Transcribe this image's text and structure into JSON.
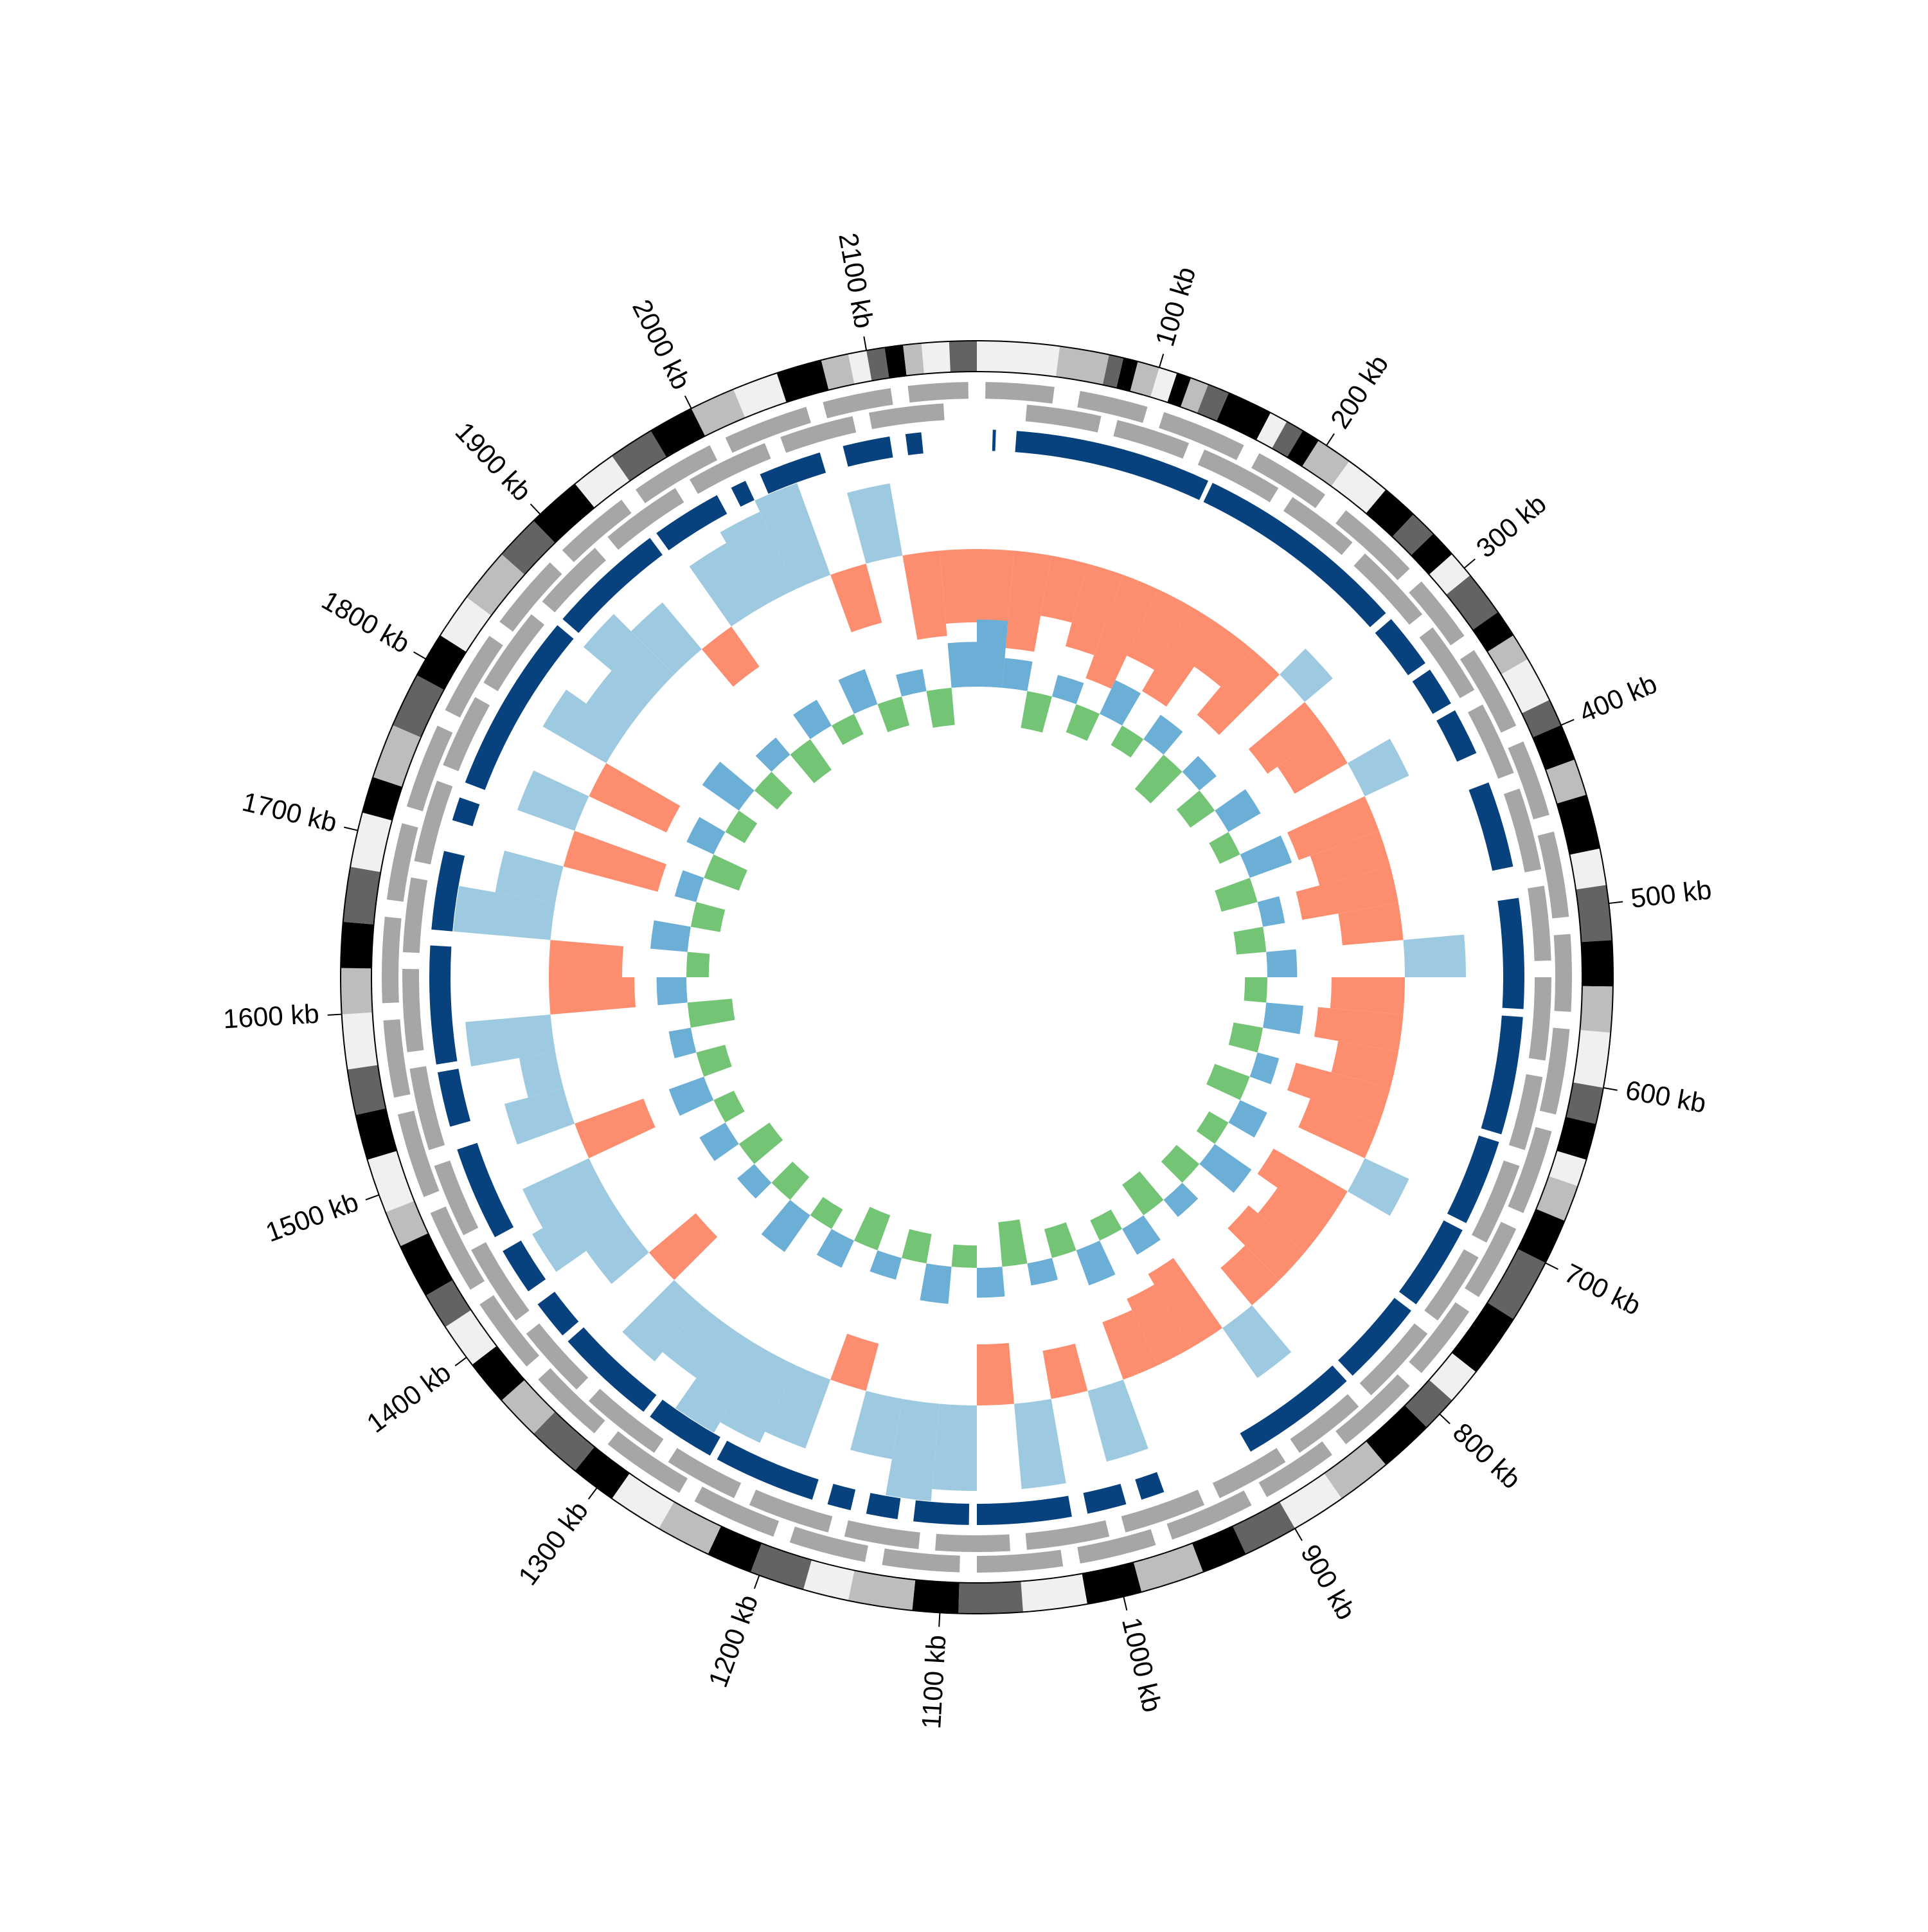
{
  "chart_data": {
    "type": "circular",
    "xlim": [
      0,
      2160
    ],
    "xticks": [
      {
        "value": 100,
        "label": "100 kb"
      },
      {
        "value": 200,
        "label": "200 kb"
      },
      {
        "value": 300,
        "label": "300 kb"
      },
      {
        "value": 400,
        "label": "400 kb"
      },
      {
        "value": 500,
        "label": "500 kb"
      },
      {
        "value": 600,
        "label": "600 kb"
      },
      {
        "value": 700,
        "label": "700 kb"
      },
      {
        "value": 800,
        "label": "800 kb"
      },
      {
        "value": 900,
        "label": "900 kb"
      },
      {
        "value": 1000,
        "label": "1000 kb"
      },
      {
        "value": 1100,
        "label": "1100 kb"
      },
      {
        "value": 1200,
        "label": "1200 kb"
      },
      {
        "value": 1300,
        "label": "1300 kb"
      },
      {
        "value": 1400,
        "label": "1400 kb"
      },
      {
        "value": 1500,
        "label": "1500 kb"
      },
      {
        "value": 1600,
        "label": "1600 kb"
      },
      {
        "value": 1700,
        "label": "1700 kb"
      },
      {
        "value": 1800,
        "label": "1800 kb"
      },
      {
        "value": 1900,
        "label": "1900 kb"
      },
      {
        "value": 2000,
        "label": "2000 kb"
      },
      {
        "value": 2100,
        "label": "2100 kb"
      }
    ],
    "tracks": [
      {
        "type": "bands",
        "palette": [
          "#f0f0f0",
          "#bdbdbd",
          "#636363",
          "#000000"
        ],
        "bins": [
          0,
          45,
          72,
          80,
          88,
          100,
          110,
          118,
          128,
          140,
          165,
          175,
          185,
          195,
          215,
          240,
          260,
          275,
          290,
          305,
          330,
          345,
          360,
          385,
          400,
          420,
          440,
          470,
          490,
          520,
          545,
          570,
          600,
          620,
          640,
          655,
          675,
          700,
          735,
          770,
          790,
          810,
          840,
          870,
          900,
          930,
          955,
          990,
          1020,
          1055,
          1090,
          1115,
          1150,
          1175,
          1205,
          1230,
          1260,
          1290,
          1315,
          1345,
          1370,
          1395,
          1420,
          1440,
          1470,
          1490,
          1520,
          1545,
          1570,
          1600,
          1625,
          1650,
          1680,
          1710,
          1730,
          1760,
          1790,
          1815,
          1840,
          1870,
          1895,
          1925,
          1950,
          1975,
          2000,
          2025,
          2050,
          2075,
          2090,
          2100,
          2110,
          2120,
          2130,
          2145,
          2160
        ],
        "levels": [
          0,
          1,
          2,
          3,
          1,
          0,
          3,
          1,
          2,
          3,
          0,
          2,
          3,
          1,
          0,
          3,
          2,
          3,
          0,
          2,
          3,
          1,
          0,
          2,
          3,
          1,
          3,
          0,
          2,
          3,
          1,
          0,
          2,
          3,
          0,
          1,
          3,
          2,
          3,
          0,
          2,
          3,
          1,
          0,
          2,
          3,
          1,
          3,
          0,
          2,
          3,
          1,
          0,
          2,
          3,
          1,
          0,
          3,
          2,
          1,
          3,
          0,
          2,
          3,
          1,
          0,
          3,
          2,
          0,
          1,
          3,
          2,
          0,
          3,
          1,
          2,
          3,
          0,
          1,
          2,
          3,
          0,
          2,
          3,
          1,
          0,
          3,
          1,
          0,
          2,
          3,
          1,
          0,
          2
        ]
      },
      {
        "type": "intervals",
        "color": "#a6a6a6",
        "starts": [
          5,
          60,
          110,
          170,
          230,
          290,
          340,
          400,
          455,
          515,
          570,
          630,
          690,
          745,
          800,
          860,
          915,
          975,
          1030,
          1090,
          1145,
          1200,
          1260,
          1320,
          1375,
          1430,
          1490,
          1550,
          1605,
          1665,
          1720,
          1780,
          1840,
          1895,
          1950,
          2010,
          2070,
          2120
        ],
        "ends": [
          45,
          100,
          160,
          215,
          280,
          330,
          390,
          445,
          505,
          560,
          620,
          680,
          735,
          790,
          850,
          905,
          965,
          1020,
          1080,
          1135,
          1190,
          1250,
          1310,
          1365,
          1420,
          1480,
          1540,
          1595,
          1655,
          1710,
          1770,
          1830,
          1885,
          1940,
          2000,
          2060,
          2110,
          2155
        ]
      },
      {
        "type": "intervals",
        "color": "#a6a6a6",
        "starts": [
          30,
          85,
          140,
          200,
          255,
          315,
          370,
          425,
          485,
          540,
          600,
          655,
          715,
          770,
          830,
          885,
          940,
          1000,
          1060,
          1115,
          1170,
          1230,
          1285,
          1345,
          1400,
          1460,
          1515,
          1575,
          1635,
          1690,
          1750,
          1805,
          1865,
          1920,
          1980,
          2040,
          2095
        ],
        "ends": [
          75,
          130,
          190,
          245,
          305,
          360,
          415,
          475,
          530,
          590,
          645,
          705,
          760,
          820,
          875,
          930,
          990,
          1050,
          1105,
          1160,
          1220,
          1275,
          1335,
          1390,
          1450,
          1505,
          1565,
          1625,
          1680,
          1740,
          1795,
          1855,
          1910,
          1970,
          2030,
          2085,
          2140
        ]
      },
      {
        "type": "intervals",
        "color": "#08427e",
        "starts": [
          10,
          25,
          153,
          295,
          335,
          365,
          415,
          490,
          565,
          645,
          705,
          765,
          825,
          960,
          985,
          1020,
          1085,
          1130,
          1160,
          1185,
          1255,
          1305,
          1375,
          1410,
          1450,
          1525,
          1565,
          1650,
          1720,
          1745,
          1865,
          1945,
          2000,
          2020,
          2075,
          2115
        ],
        "ends": [
          12,
          150,
          290,
          330,
          360,
          395,
          470,
          560,
          640,
          700,
          760,
          820,
          900,
          975,
          1010,
          1080,
          1120,
          1150,
          1175,
          1250,
          1300,
          1370,
          1400,
          1440,
          1510,
          1560,
          1640,
          1700,
          1735,
          1860,
          1940,
          1990,
          2010,
          2060,
          2105,
          2125
        ]
      },
      {
        "type": "bars",
        "ylim": [
          -1,
          1
        ],
        "pos_color": "#9ecae1",
        "neg_color": "#fc8d6e",
        "x": [
          0,
          30,
          60,
          90,
          120,
          150,
          180,
          210,
          240,
          270,
          300,
          330,
          360,
          390,
          420,
          450,
          480,
          510,
          540,
          570,
          600,
          630,
          660,
          690,
          720,
          750,
          780,
          810,
          840,
          870,
          900,
          930,
          960,
          990,
          1020,
          1050,
          1080,
          1110,
          1140,
          1170,
          1200,
          1230,
          1260,
          1290,
          1320,
          1350,
          1380,
          1410,
          1440,
          1470,
          1500,
          1530,
          1560,
          1590,
          1620,
          1650,
          1680,
          1710,
          1740,
          1770,
          1800,
          1830,
          1860,
          1890,
          1920,
          1950,
          1980,
          2010,
          2040,
          2070,
          2100,
          2130
        ],
        "values": [
          -0.6,
          -0.8,
          -0.5,
          -0.7,
          -0.9,
          -0.6,
          -0.8,
          -0.4,
          -0.7,
          0.3,
          -0.6,
          -0.5,
          0.4,
          -0.7,
          -0.6,
          -0.8,
          -0.5,
          0.5,
          -0.6,
          -0.7,
          -0.5,
          -0.8,
          -0.6,
          0.4,
          -0.7,
          -0.5,
          -0.6,
          -0.4,
          0.5,
          -0.7,
          -0.6,
          -0.5,
          0.6,
          -0.4,
          0.7,
          -0.5,
          0.7,
          0.8,
          0.5,
          -0.4,
          0.6,
          0.7,
          0.8,
          0.5,
          0.6,
          -0.5,
          0.4,
          0.7,
          0.6,
          -0.6,
          0.5,
          0.3,
          0.7,
          -0.7,
          -0.6,
          0.8,
          0.5,
          -0.8,
          0.5,
          -0.7,
          0.6,
          0.4,
          0.7,
          0.5,
          -0.4,
          0.6,
          0.7,
          0.8,
          -0.5,
          0.6,
          -0.7,
          -0.6
        ]
      },
      {
        "type": "bars",
        "ylim": [
          -1,
          1
        ],
        "pos_color": "#6baed6",
        "neg_color": "#74c476",
        "x": [
          0,
          30,
          60,
          90,
          120,
          150,
          180,
          210,
          240,
          270,
          300,
          330,
          360,
          390,
          420,
          450,
          480,
          510,
          540,
          570,
          600,
          630,
          660,
          690,
          720,
          750,
          780,
          810,
          840,
          870,
          900,
          930,
          960,
          990,
          1020,
          1050,
          1080,
          1110,
          1140,
          1170,
          1200,
          1230,
          1260,
          1290,
          1320,
          1350,
          1380,
          1410,
          1440,
          1470,
          1500,
          1530,
          1560,
          1590,
          1620,
          1650,
          1680,
          1710,
          1740,
          1770,
          1800,
          1830,
          1860,
          1890,
          1920,
          1950,
          1980,
          2010,
          2040,
          2070,
          2100,
          2130
        ],
        "values": [
          0.9,
          0.4,
          -0.5,
          0.3,
          -0.4,
          0.5,
          -0.3,
          0.4,
          -0.6,
          0.3,
          -0.4,
          0.5,
          -0.3,
          0.6,
          -0.5,
          0.3,
          -0.4,
          0.4,
          -0.3,
          0.5,
          -0.4,
          0.3,
          -0.5,
          0.4,
          -0.3,
          0.6,
          -0.4,
          0.3,
          -0.5,
          0.4,
          -0.3,
          0.5,
          -0.4,
          0.3,
          -0.6,
          0.4,
          -0.3,
          0.5,
          -0.4,
          0.3,
          -0.5,
          0.4,
          -0.3,
          0.6,
          -0.4,
          0.3,
          -0.5,
          0.4,
          -0.3,
          0.5,
          -0.4,
          0.3,
          -0.6,
          0.4,
          -0.3,
          0.5,
          -0.4,
          0.3,
          -0.5,
          0.4,
          -0.3,
          0.6,
          -0.4,
          0.3,
          -0.5,
          0.4,
          -0.3,
          0.5,
          -0.4,
          0.3,
          -0.5,
          0.6
        ]
      }
    ]
  }
}
